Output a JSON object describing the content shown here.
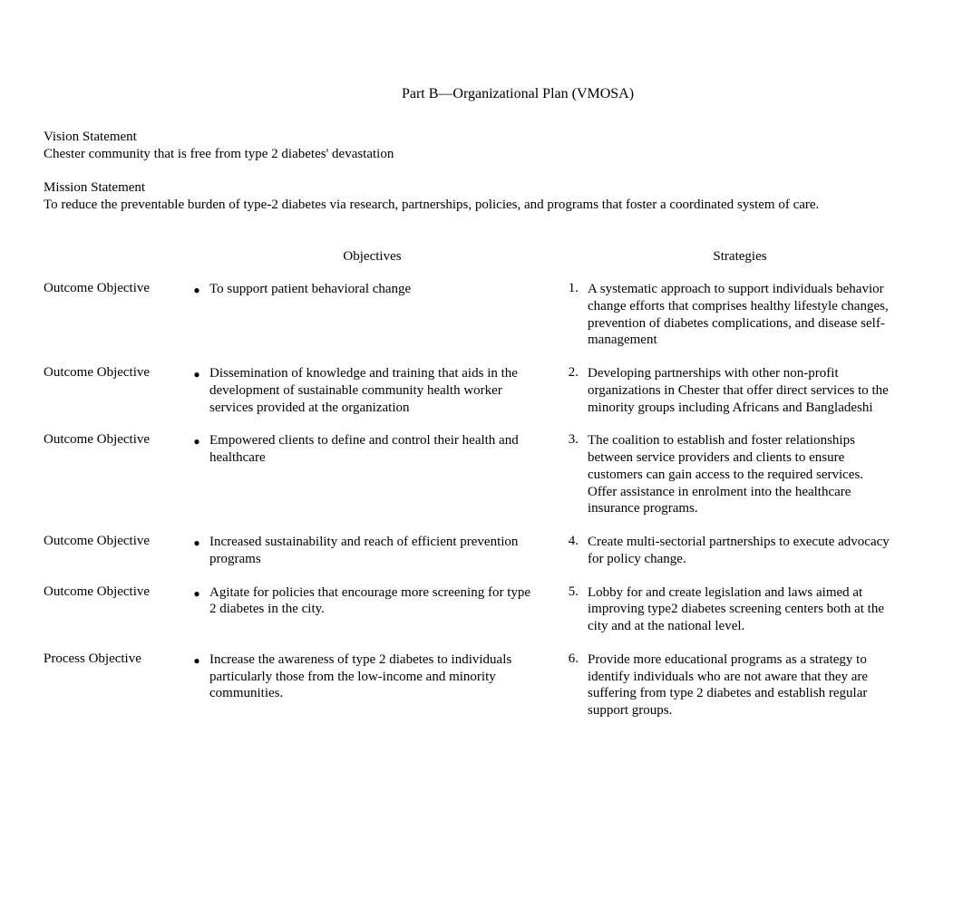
{
  "title": "Part B—Organizational Plan (VMOSA)",
  "vision": {
    "heading": "Vision Statement",
    "text": "Chester community that is free from type 2 diabetes' devastation"
  },
  "mission": {
    "heading": "Mission Statement",
    "text": "To reduce the preventable burden of type-2 diabetes via research, partnerships, policies, and programs that foster a coordinated system of care."
  },
  "headers": {
    "objectives": "Objectives",
    "strategies": "Strategies"
  },
  "rows": [
    {
      "label": "Outcome Objective",
      "objective": "To support patient behavioral change",
      "number": "1.",
      "strategy": "A systematic approach to  support individuals behavior change efforts that comprises healthy lifestyle changes, prevention of diabetes complications, and disease self-management"
    },
    {
      "label": "Outcome Objective",
      "objective": "Dissemination of knowledge and training that aids in the development of sustainable community health worker services provided at the organization",
      "number": "2.",
      "strategy": "Developing partnerships with other non-profit organizations in Chester that offer direct services to the minority groups including Africans and Bangladeshi"
    },
    {
      "label": "Outcome Objective",
      "objective": "Empowered clients to define and control their health and healthcare",
      "number": "3.",
      "strategy": "The coalition to establish and foster relationships between service providers and clients to ensure customers can gain access to the required services.\nOffer assistance in enrolment into the healthcare insurance programs."
    },
    {
      "label": "Outcome Objective",
      "objective": "Increased sustainability and reach of efficient prevention programs",
      "number": "4.",
      "strategy": "Create multi-sectorial partnerships to execute advocacy for policy change."
    },
    {
      "label": "Outcome Objective",
      "objective": "Agitate for policies that encourage more screening for type 2 diabetes in the city.",
      "number": "5.",
      "strategy": "Lobby for and create legislation and laws aimed at improving type2 diabetes screening centers both at the city and at the national level."
    },
    {
      "label": "Process Objective",
      "objective": "Increase the awareness of type 2 diabetes to individuals particularly those from the low-income and minority communities.",
      "number": "6.",
      "strategy": "Provide more educational programs as a strategy to identify individuals who are not aware that they are suffering from type 2 diabetes and establish regular support groups."
    }
  ]
}
